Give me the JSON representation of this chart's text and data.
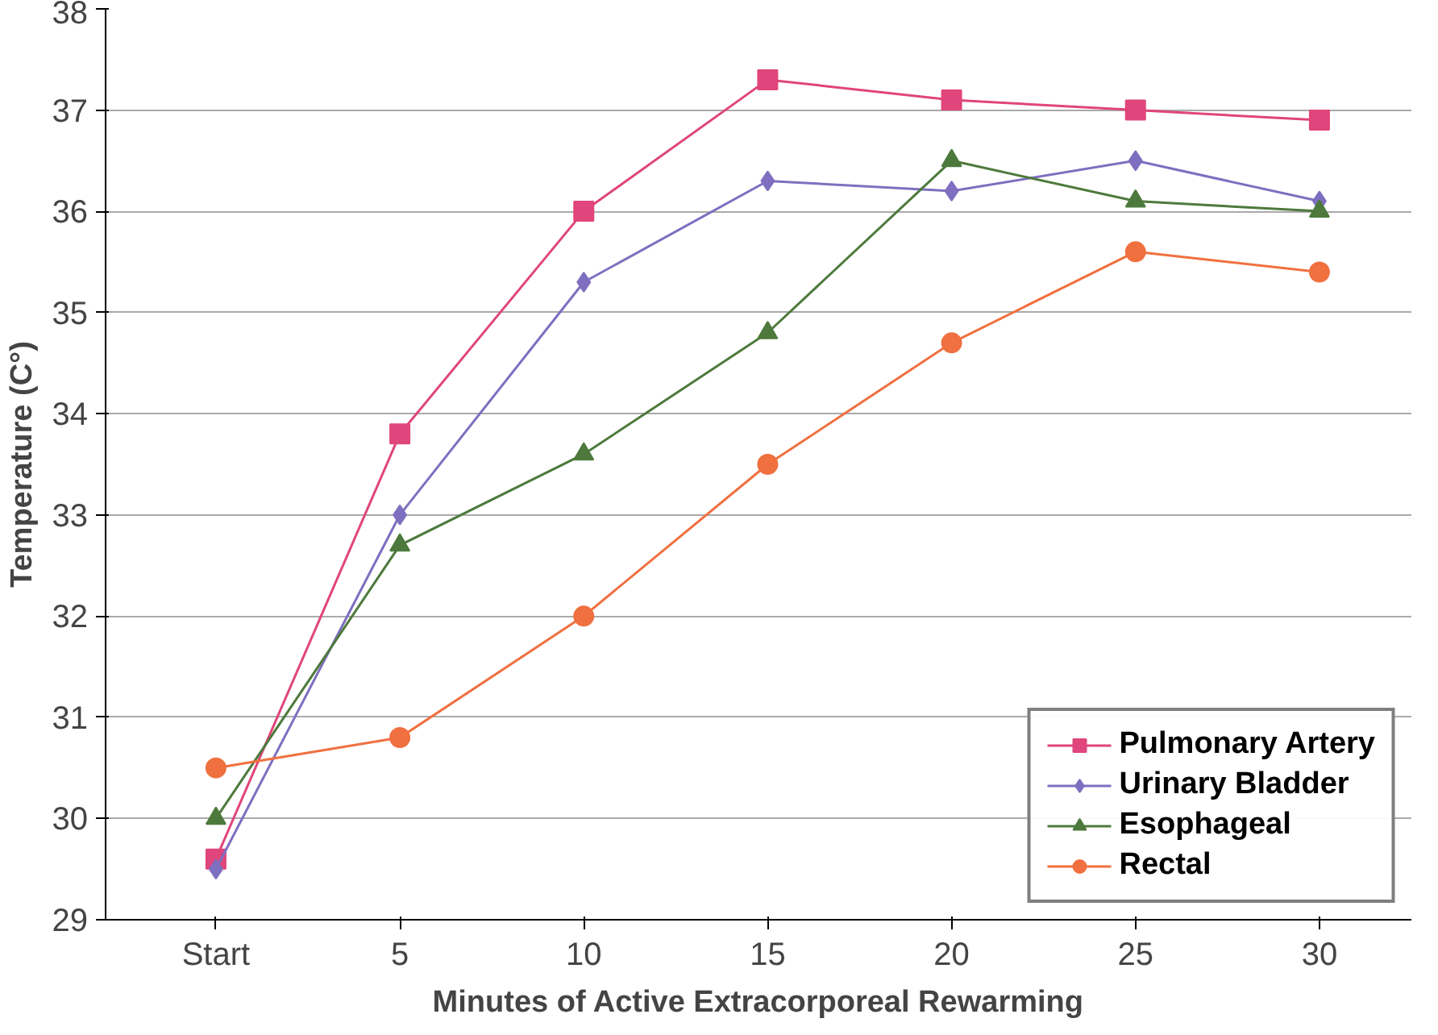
{
  "chart_data": {
    "type": "line",
    "xlabel": "Minutes of Active Extracorporeal Rewarming",
    "ylabel": "Temperature (C°)",
    "categories": [
      "Start",
      "5",
      "10",
      "15",
      "20",
      "25",
      "30"
    ],
    "ylim": [
      29,
      38
    ],
    "yticks": [
      29,
      30,
      31,
      32,
      33,
      34,
      35,
      36,
      37,
      38
    ],
    "grid": "y",
    "legend": "bottom right",
    "line_style": "solid",
    "series": [
      {
        "name": "Pulmonary Artery",
        "color": "#e0457b",
        "marker": "square",
        "values": [
          29.6,
          33.8,
          36.0,
          37.3,
          37.1,
          37.0,
          36.9
        ]
      },
      {
        "name": "Urinary Bladder",
        "color": "#7f6fc0",
        "marker": "diamond",
        "values": [
          29.5,
          33.0,
          35.3,
          36.3,
          36.2,
          36.5,
          36.1
        ]
      },
      {
        "name": "Esophageal",
        "color": "#4d7a3c",
        "marker": "triangle",
        "values": [
          30.0,
          32.7,
          33.6,
          34.8,
          36.5,
          36.1,
          36.0
        ]
      },
      {
        "name": "Rectal",
        "color": "#f07040",
        "marker": "circle",
        "values": [
          30.5,
          30.8,
          32.0,
          33.5,
          34.7,
          35.6,
          35.4
        ]
      }
    ]
  }
}
